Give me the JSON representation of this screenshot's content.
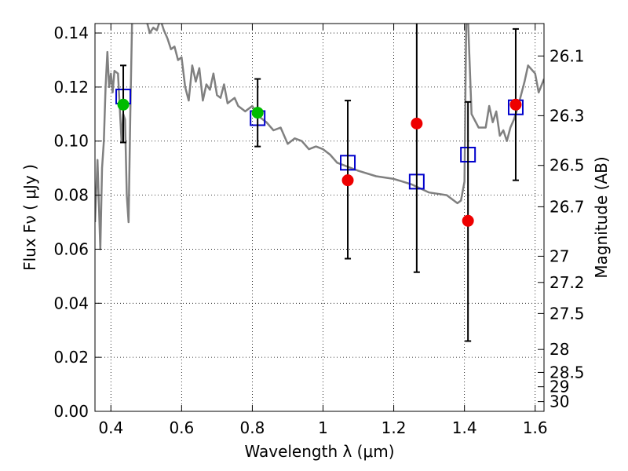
{
  "chart_data": {
    "type": "scatter",
    "xlabel": "Wavelength  λ (μm)",
    "ylabel": "Flux  Fν  ( μJy )",
    "ylabel_right": "Magnitude (AB)",
    "xlim": [
      0.355,
      1.625
    ],
    "ylim": [
      0.0,
      0.1435
    ],
    "grid": true,
    "x_ticks": [
      0.4,
      0.6,
      0.8,
      1.0,
      1.2,
      1.4,
      1.6
    ],
    "x_tick_labels": [
      "0.4",
      "0.6",
      "0.8",
      "1",
      "1.2",
      "1.4",
      "1.6"
    ],
    "y_ticks": [
      0.0,
      0.02,
      0.04,
      0.06,
      0.08,
      0.1,
      0.12,
      0.14
    ],
    "y_tick_labels": [
      "0.00",
      "0.02",
      "0.04",
      "0.06",
      "0.08",
      "0.10",
      "0.12",
      "0.14"
    ],
    "right_ticks": [
      {
        "label": "26.1",
        "flux": 0.1315
      },
      {
        "label": "26.3",
        "flux": 0.1094
      },
      {
        "label": "26.5",
        "flux": 0.091
      },
      {
        "label": "26.7",
        "flux": 0.0757
      },
      {
        "label": "27",
        "flux": 0.0574
      },
      {
        "label": "27.2",
        "flux": 0.0477
      },
      {
        "label": "27.5",
        "flux": 0.0362
      },
      {
        "label": "28",
        "flux": 0.0229
      },
      {
        "label": "28.5",
        "flux": 0.0144
      },
      {
        "label": "29",
        "flux": 0.0091
      },
      {
        "label": "30",
        "flux": 0.0036
      }
    ],
    "colors": {
      "template": "#808080",
      "model_box": "#0000cc",
      "obs_green": "#00bb00",
      "obs_red": "#ee0000",
      "errorbar": "#000000"
    },
    "template_sed": {
      "x": [
        0.355,
        0.362,
        0.37,
        0.375,
        0.38,
        0.385,
        0.39,
        0.395,
        0.4,
        0.405,
        0.41,
        0.42,
        0.43,
        0.435,
        0.44,
        0.445,
        0.45,
        0.455,
        0.46,
        0.47,
        0.48,
        0.5,
        0.51,
        0.52,
        0.53,
        0.54,
        0.55,
        0.56,
        0.57,
        0.58,
        0.59,
        0.6,
        0.61,
        0.62,
        0.63,
        0.64,
        0.65,
        0.66,
        0.67,
        0.68,
        0.69,
        0.7,
        0.71,
        0.72,
        0.73,
        0.74,
        0.75,
        0.76,
        0.78,
        0.8,
        0.82,
        0.84,
        0.86,
        0.88,
        0.9,
        0.92,
        0.94,
        0.96,
        0.98,
        1.0,
        1.02,
        1.04,
        1.06,
        1.08,
        1.1,
        1.15,
        1.2,
        1.25,
        1.3,
        1.35,
        1.38,
        1.39,
        1.4,
        1.405,
        1.41,
        1.42,
        1.44,
        1.46,
        1.47,
        1.48,
        1.49,
        1.5,
        1.51,
        1.52,
        1.53,
        1.54,
        1.55,
        1.56,
        1.57,
        1.58,
        1.6,
        1.61,
        1.625
      ],
      "y": [
        0.07,
        0.093,
        0.06,
        0.09,
        0.1,
        0.12,
        0.133,
        0.12,
        0.125,
        0.118,
        0.126,
        0.125,
        0.1,
        0.11,
        0.108,
        0.08,
        0.07,
        0.11,
        0.145,
        0.145,
        0.145,
        0.145,
        0.14,
        0.142,
        0.141,
        0.145,
        0.141,
        0.138,
        0.134,
        0.135,
        0.13,
        0.131,
        0.12,
        0.115,
        0.128,
        0.122,
        0.127,
        0.115,
        0.121,
        0.119,
        0.125,
        0.117,
        0.116,
        0.121,
        0.114,
        0.115,
        0.116,
        0.113,
        0.111,
        0.113,
        0.109,
        0.107,
        0.104,
        0.105,
        0.099,
        0.101,
        0.1,
        0.097,
        0.098,
        0.097,
        0.095,
        0.092,
        0.091,
        0.09,
        0.089,
        0.087,
        0.086,
        0.084,
        0.081,
        0.08,
        0.077,
        0.078,
        0.085,
        0.145,
        0.145,
        0.11,
        0.105,
        0.105,
        0.113,
        0.107,
        0.111,
        0.102,
        0.104,
        0.1,
        0.105,
        0.108,
        0.112,
        0.117,
        0.122,
        0.128,
        0.125,
        0.118,
        0.123
      ]
    },
    "model_fluxes": {
      "x": [
        0.435,
        0.815,
        1.07,
        1.265,
        1.41,
        1.545
      ],
      "y": [
        0.1165,
        0.1085,
        0.092,
        0.085,
        0.095,
        0.1125
      ]
    },
    "observed": [
      {
        "x": 0.435,
        "y": 0.1135,
        "yerr_low": 0.0995,
        "yerr_high": 0.128,
        "color": "green"
      },
      {
        "x": 0.815,
        "y": 0.1105,
        "yerr_low": 0.098,
        "yerr_high": 0.123,
        "color": "green"
      },
      {
        "x": 1.07,
        "y": 0.0855,
        "yerr_low": 0.0565,
        "yerr_high": 0.115,
        "color": "red"
      },
      {
        "x": 1.265,
        "y": 0.1065,
        "yerr_low": 0.0515,
        "yerr_high": 0.145,
        "color": "red"
      },
      {
        "x": 1.41,
        "y": 0.0705,
        "yerr_low": 0.026,
        "yerr_high": 0.1145,
        "color": "red"
      },
      {
        "x": 1.545,
        "y": 0.1135,
        "yerr_low": 0.0855,
        "yerr_high": 0.1415,
        "color": "red"
      }
    ]
  }
}
